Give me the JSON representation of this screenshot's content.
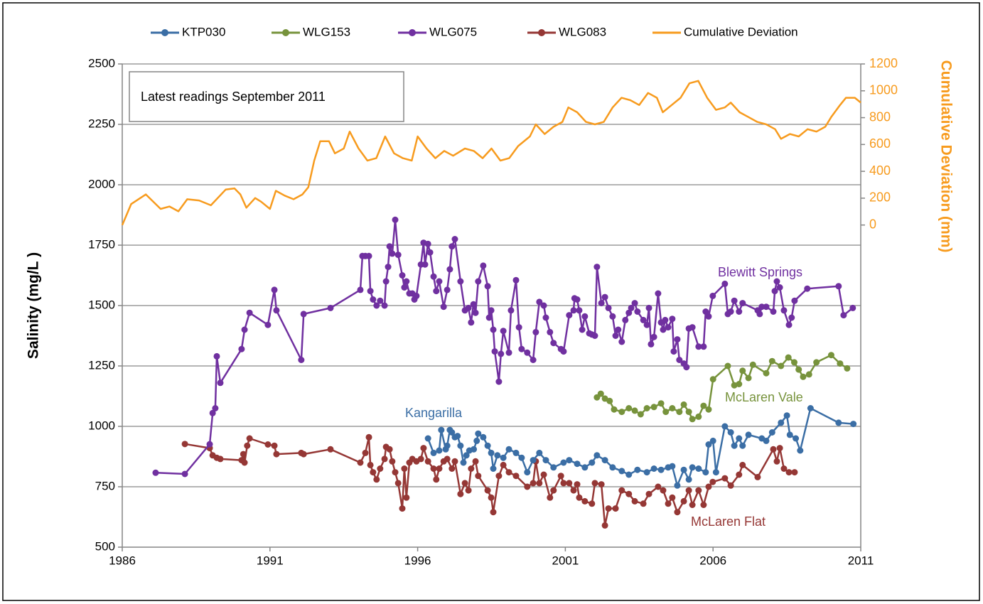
{
  "chart_data": {
    "type": "line",
    "y_label": "Salinity (mg/L )",
    "y2_label": "Cumulative Deviation (mm)",
    "annotations": [
      {
        "text": "Latest readings  September 2011",
        "color": "#000000"
      },
      {
        "text": "Blewitt Springs",
        "color": "#7030a0"
      },
      {
        "text": "McLaren Vale",
        "color": "#77933c"
      },
      {
        "text": "Kangarilla",
        "color": "#3b6ea5"
      },
      {
        "text": "McLaren Flat",
        "color": "#953735"
      }
    ],
    "xlim": [
      1986,
      2011
    ],
    "xticks": [
      1986,
      1991,
      1996,
      2001,
      2006,
      2011
    ],
    "ylim": [
      500,
      2500
    ],
    "yticks": [
      500,
      750,
      1000,
      1250,
      1500,
      1750,
      2000,
      2250,
      2500
    ],
    "y2lim": [
      -2400,
      1200
    ],
    "y2ticks": [
      0,
      200,
      400,
      600,
      800,
      1000,
      1200
    ],
    "grid": true,
    "legend": "top",
    "series": [
      {
        "name": "KTP030",
        "color": "#3b6ea5",
        "markers": true,
        "x": [
          1996.35,
          1996.54,
          1996.73,
          1996.8,
          1996.95,
          1997.0,
          1997.09,
          1997.16,
          1997.26,
          1997.35,
          1997.45,
          1997.55,
          1997.65,
          1997.75,
          1997.9,
          1998.0,
          1998.05,
          1998.22,
          1998.37,
          1998.49,
          1998.56,
          1998.7,
          1998.9,
          1999.09,
          1999.33,
          1999.52,
          1999.71,
          1999.91,
          2000.12,
          2000.34,
          2000.6,
          2000.94,
          2001.13,
          2001.4,
          2001.66,
          2001.9,
          2002.07,
          2002.34,
          2002.6,
          2002.91,
          2003.15,
          2003.44,
          2003.76,
          2004.0,
          2004.24,
          2004.48,
          2004.62,
          2004.79,
          2005.01,
          2005.18,
          2005.3,
          2005.51,
          2005.75,
          2005.85,
          2006.0,
          2006.1,
          2006.4,
          2006.6,
          2006.72,
          2006.88,
          2007.0,
          2007.2,
          2007.65,
          2007.8,
          2008.0,
          2008.3,
          2008.5,
          2008.6,
          2008.8,
          2008.95,
          2009.3,
          2010.25,
          2010.75
        ],
        "values": [
          950,
          890,
          900,
          985,
          905,
          920,
          985,
          975,
          955,
          960,
          920,
          850,
          880,
          900,
          905,
          940,
          970,
          955,
          920,
          890,
          825,
          880,
          870,
          905,
          890,
          870,
          810,
          860,
          890,
          860,
          830,
          850,
          860,
          845,
          830,
          850,
          880,
          860,
          830,
          815,
          800,
          820,
          810,
          825,
          820,
          830,
          835,
          755,
          820,
          780,
          830,
          825,
          810,
          925,
          940,
          810,
          1000,
          975,
          920,
          950,
          920,
          965,
          950,
          940,
          975,
          1015,
          1045,
          965,
          950,
          900,
          1075,
          1015,
          1010
        ]
      },
      {
        "name": "WLG153",
        "color": "#77933c",
        "markers": true,
        "x": [
          2002.07,
          2002.2,
          2002.34,
          2002.5,
          2002.65,
          2002.91,
          2003.15,
          2003.35,
          2003.55,
          2003.76,
          2004.0,
          2004.24,
          2004.4,
          2004.62,
          2004.86,
          2005.01,
          2005.18,
          2005.3,
          2005.51,
          2005.68,
          2005.85,
          2006.0,
          2006.5,
          2006.72,
          2006.88,
          2007.0,
          2007.2,
          2007.35,
          2007.8,
          2008.0,
          2008.3,
          2008.55,
          2008.75,
          2008.9,
          2009.05,
          2009.25,
          2009.5,
          2010.0,
          2010.3,
          2010.54
        ],
        "values": [
          1120,
          1135,
          1115,
          1105,
          1070,
          1060,
          1075,
          1065,
          1050,
          1075,
          1080,
          1095,
          1060,
          1075,
          1060,
          1090,
          1060,
          1030,
          1040,
          1085,
          1070,
          1195,
          1250,
          1170,
          1175,
          1230,
          1200,
          1255,
          1220,
          1270,
          1250,
          1285,
          1265,
          1235,
          1205,
          1215,
          1265,
          1295,
          1260,
          1240
        ]
      },
      {
        "name": "WLG075",
        "color": "#7030a0",
        "markers": true,
        "x": [
          1987.13,
          1988.12,
          1988.96,
          1989.06,
          1989.15,
          1989.2,
          1989.32,
          1990.04,
          1990.14,
          1990.31,
          1990.93,
          1991.15,
          1991.22,
          1992.06,
          1992.14,
          1993.05,
          1994.06,
          1994.13,
          1994.23,
          1994.35,
          1994.4,
          1994.49,
          1994.61,
          1994.73,
          1994.88,
          1994.93,
          1995.0,
          1995.05,
          1995.14,
          1995.24,
          1995.34,
          1995.48,
          1995.55,
          1995.62,
          1995.72,
          1995.82,
          1995.89,
          1995.96,
          1996.11,
          1996.2,
          1996.25,
          1996.35,
          1996.42,
          1996.54,
          1996.63,
          1996.73,
          1996.88,
          1997.0,
          1997.09,
          1997.16,
          1997.26,
          1997.45,
          1997.6,
          1997.72,
          1997.81,
          1997.89,
          1997.96,
          1998.05,
          1998.22,
          1998.37,
          1998.42,
          1998.49,
          1998.56,
          1998.61,
          1998.75,
          1998.82,
          1998.9,
          1999.09,
          1999.16,
          1999.33,
          1999.43,
          1999.52,
          1999.71,
          1999.91,
          2000.0,
          2000.12,
          2000.27,
          2000.34,
          2000.48,
          2000.6,
          2000.85,
          2000.94,
          2001.13,
          2001.28,
          2001.31,
          2001.4,
          2001.47,
          2001.57,
          2001.66,
          2001.81,
          2001.9,
          2002.0,
          2002.07,
          2002.22,
          2002.34,
          2002.46,
          2002.6,
          2002.7,
          2002.79,
          2002.91,
          2003.03,
          2003.15,
          2003.23,
          2003.35,
          2003.44,
          2003.64,
          2003.76,
          2003.83,
          2003.9,
          2004.0,
          2004.14,
          2004.24,
          2004.31,
          2004.38,
          2004.48,
          2004.62,
          2004.67,
          2004.79,
          2004.86,
          2005.01,
          2005.1,
          2005.18,
          2005.3,
          2005.51,
          2005.68,
          2005.75,
          2005.85,
          2005.99,
          2006.4,
          2006.5,
          2006.6,
          2006.72,
          2006.88,
          2007.0,
          2007.51,
          2007.58,
          2007.65,
          2007.8,
          2008.04,
          2008.09,
          2008.16,
          2008.26,
          2008.4,
          2008.57,
          2008.66,
          2008.76,
          2009.19,
          2010.25,
          2010.42,
          2010.73
        ],
        "values": [
          808,
          803,
          926,
          1055,
          1075,
          1290,
          1180,
          1320,
          1400,
          1470,
          1420,
          1565,
          1480,
          1275,
          1465,
          1490,
          1565,
          1705,
          1705,
          1705,
          1560,
          1525,
          1500,
          1520,
          1500,
          1600,
          1660,
          1745,
          1715,
          1855,
          1710,
          1625,
          1575,
          1600,
          1550,
          1550,
          1525,
          1540,
          1670,
          1760,
          1670,
          1755,
          1720,
          1620,
          1560,
          1600,
          1495,
          1565,
          1650,
          1745,
          1775,
          1600,
          1480,
          1490,
          1430,
          1505,
          1470,
          1600,
          1665,
          1580,
          1450,
          1480,
          1400,
          1310,
          1185,
          1300,
          1395,
          1305,
          1480,
          1605,
          1410,
          1320,
          1305,
          1275,
          1390,
          1515,
          1500,
          1450,
          1390,
          1345,
          1320,
          1310,
          1460,
          1480,
          1530,
          1525,
          1480,
          1400,
          1455,
          1385,
          1380,
          1375,
          1660,
          1510,
          1535,
          1490,
          1455,
          1375,
          1400,
          1350,
          1440,
          1470,
          1490,
          1510,
          1475,
          1440,
          1420,
          1490,
          1340,
          1370,
          1550,
          1430,
          1400,
          1440,
          1410,
          1445,
          1310,
          1360,
          1275,
          1260,
          1245,
          1405,
          1410,
          1330,
          1330,
          1475,
          1455,
          1540,
          1590,
          1465,
          1475,
          1520,
          1475,
          1510,
          1480,
          1465,
          1495,
          1495,
          1475,
          1560,
          1600,
          1575,
          1480,
          1420,
          1450,
          1520,
          1570,
          1580,
          1460,
          1490
        ]
      },
      {
        "name": "WLG083",
        "color": "#953735",
        "markers": true,
        "x": [
          1988.12,
          1988.96,
          1989.06,
          1989.2,
          1989.32,
          1990.04,
          1990.1,
          1990.14,
          1990.23,
          1990.31,
          1990.93,
          1991.15,
          1991.22,
          1992.06,
          1992.14,
          1993.05,
          1994.06,
          1994.23,
          1994.35,
          1994.4,
          1994.49,
          1994.61,
          1994.73,
          1994.88,
          1994.93,
          1995.05,
          1995.14,
          1995.24,
          1995.34,
          1995.48,
          1995.55,
          1995.62,
          1995.72,
          1995.82,
          1995.96,
          1996.11,
          1996.2,
          1996.35,
          1996.54,
          1996.63,
          1996.73,
          1996.88,
          1997.0,
          1997.16,
          1997.26,
          1997.45,
          1997.6,
          1997.72,
          1997.81,
          1997.96,
          1998.05,
          1998.37,
          1998.49,
          1998.56,
          1998.75,
          1998.9,
          1999.09,
          1999.33,
          1999.71,
          1999.91,
          2000.0,
          2000.12,
          2000.27,
          2000.48,
          2000.6,
          2000.85,
          2000.94,
          2001.13,
          2001.28,
          2001.4,
          2001.47,
          2001.66,
          2001.9,
          2002.0,
          2002.22,
          2002.34,
          2002.46,
          2002.7,
          2002.91,
          2003.15,
          2003.35,
          2003.64,
          2003.83,
          2004.14,
          2004.31,
          2004.48,
          2004.62,
          2004.79,
          2005.01,
          2005.18,
          2005.3,
          2005.51,
          2005.68,
          2005.85,
          2005.99,
          2006.4,
          2006.6,
          2006.88,
          2007.0,
          2007.51,
          2008.04,
          2008.16,
          2008.26,
          2008.4,
          2008.57,
          2008.76
        ],
        "values": [
          927,
          910,
          880,
          870,
          865,
          860,
          885,
          850,
          920,
          950,
          925,
          920,
          885,
          890,
          885,
          905,
          850,
          890,
          955,
          840,
          810,
          780,
          825,
          865,
          915,
          905,
          855,
          810,
          765,
          660,
          825,
          705,
          850,
          865,
          855,
          865,
          910,
          855,
          825,
          780,
          825,
          855,
          865,
          825,
          855,
          720,
          765,
          735,
          825,
          855,
          795,
          735,
          705,
          645,
          795,
          840,
          810,
          795,
          750,
          765,
          855,
          765,
          800,
          705,
          735,
          795,
          765,
          765,
          735,
          760,
          705,
          690,
          680,
          765,
          760,
          590,
          660,
          660,
          735,
          720,
          690,
          680,
          720,
          750,
          735,
          680,
          705,
          645,
          690,
          735,
          675,
          735,
          675,
          750,
          770,
          785,
          755,
          800,
          840,
          790,
          905,
          855,
          910,
          825,
          810,
          810
        ]
      },
      {
        "name": "Cumulative Deviation",
        "color": "#f79b1e",
        "markers": false,
        "axis": "y2",
        "x": [
          1986.0,
          1986.3,
          1986.8,
          1987.3,
          1987.6,
          1987.9,
          1988.2,
          1988.6,
          1989.0,
          1989.5,
          1989.8,
          1990.0,
          1990.2,
          1990.5,
          1990.7,
          1991.0,
          1991.2,
          1991.5,
          1991.8,
          1992.1,
          1992.3,
          1992.5,
          1992.7,
          1993.0,
          1993.2,
          1993.5,
          1993.7,
          1994.0,
          1994.3,
          1994.6,
          1994.9,
          1995.2,
          1995.5,
          1995.8,
          1996.0,
          1996.3,
          1996.6,
          1996.9,
          1997.2,
          1997.6,
          1997.9,
          1998.2,
          1998.5,
          1998.8,
          1999.1,
          1999.4,
          1999.8,
          2000.0,
          2000.3,
          2000.6,
          2000.9,
          2001.1,
          2001.4,
          2001.7,
          2002.0,
          2002.3,
          2002.6,
          2002.9,
          2003.2,
          2003.5,
          2003.8,
          2004.1,
          2004.3,
          2004.6,
          2004.9,
          2005.2,
          2005.5,
          2005.8,
          2006.1,
          2006.4,
          2006.6,
          2006.9,
          2007.2,
          2007.5,
          2007.8,
          2008.1,
          2008.3,
          2008.6,
          2008.9,
          2009.2,
          2009.5,
          2009.8,
          2010.0,
          2010.3,
          2010.5,
          2010.8,
          2011.0
        ],
        "values": [
          0,
          156,
          228,
          120,
          138,
          102,
          192,
          183,
          147,
          264,
          273,
          228,
          129,
          201,
          174,
          120,
          255,
          219,
          192,
          228,
          282,
          480,
          624,
          624,
          534,
          570,
          696,
          570,
          480,
          498,
          660,
          534,
          498,
          480,
          660,
          570,
          498,
          552,
          516,
          570,
          552,
          498,
          570,
          480,
          498,
          588,
          660,
          750,
          678,
          732,
          768,
          876,
          840,
          768,
          750,
          768,
          876,
          948,
          930,
          894,
          984,
          948,
          840,
          894,
          948,
          1056,
          1074,
          948,
          858,
          876,
          912,
          840,
          804,
          768,
          750,
          714,
          642,
          678,
          660,
          714,
          696,
          732,
          804,
          894,
          948,
          948,
          912
        ]
      }
    ]
  }
}
